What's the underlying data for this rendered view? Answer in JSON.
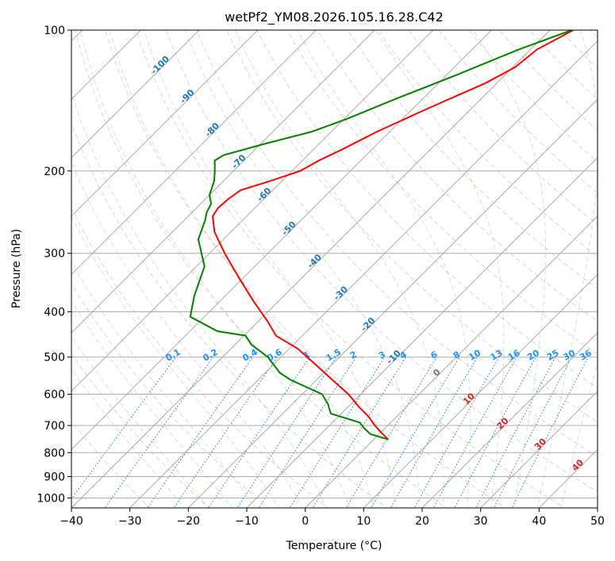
{
  "chart_data": {
    "type": "skew-t",
    "title": "wetPf2_YM08.2026.105.16.28.C42",
    "xlabel": "Temperature (°C)",
    "ylabel": "Pressure (hPa)",
    "xlim": [
      -40,
      50
    ],
    "ylim": [
      1050,
      100
    ],
    "x_ticks": [
      "−40",
      "−30",
      "−20",
      "−10",
      "0",
      "10",
      "20",
      "30",
      "40",
      "50"
    ],
    "x_tick_values": [
      -40,
      -30,
      -20,
      -10,
      0,
      10,
      20,
      30,
      40,
      50
    ],
    "y_tick_values": [
      1000,
      900,
      800,
      700,
      600,
      500,
      400,
      300,
      200,
      100
    ],
    "y_ticks": [
      "1000",
      "900",
      "800",
      "700",
      "600",
      "500",
      "400",
      "300",
      "200",
      "100"
    ],
    "grid": true,
    "isotherm_labels": [
      {
        "text": "-100",
        "t": -100,
        "p": 120
      },
      {
        "text": "-90",
        "t": -90,
        "p": 140
      },
      {
        "text": "-80",
        "t": -80,
        "p": 165
      },
      {
        "text": "-70",
        "t": -70,
        "p": 193
      },
      {
        "text": "-60",
        "t": -60,
        "p": 227
      },
      {
        "text": "-50",
        "t": -50,
        "p": 268
      },
      {
        "text": "-40",
        "t": -40,
        "p": 315
      },
      {
        "text": "-30",
        "t": -30,
        "p": 369
      },
      {
        "text": "-20",
        "t": -20,
        "p": 430
      },
      {
        "text": "-10",
        "t": -10,
        "p": 505
      }
    ],
    "mixing_ratio_labels": [
      "0.1",
      "0.2",
      "0.4",
      "0.6",
      "1",
      "1.5",
      "2",
      "3",
      "4",
      "6",
      "8",
      "10",
      "13",
      "16",
      "20",
      "25",
      "30",
      "36"
    ],
    "mixing_ratio_values": [
      0.1,
      0.2,
      0.4,
      0.6,
      1,
      1.5,
      2,
      3,
      4,
      6,
      8,
      10,
      13,
      16,
      20,
      25,
      30,
      36
    ],
    "moist_adiabat_labels": [
      {
        "text": "0",
        "t": 0,
        "p": 545
      },
      {
        "text": "10",
        "t": 10,
        "p": 620
      },
      {
        "text": "20",
        "t": 20,
        "p": 700
      },
      {
        "text": "30",
        "t": 30,
        "p": 775
      },
      {
        "text": "40",
        "t": 40,
        "p": 860
      }
    ],
    "series": [
      {
        "name": "temperature",
        "color": "#ff0000",
        "points": [
          [
            100,
            -36
          ],
          [
            110,
            -38.9
          ],
          [
            120,
            -39.6
          ],
          [
            130,
            -42.0
          ],
          [
            140,
            -45.3
          ],
          [
            150,
            -48.3
          ],
          [
            165,
            -52.2
          ],
          [
            180,
            -55.1
          ],
          [
            190,
            -57.2
          ],
          [
            200,
            -58.6
          ],
          [
            210,
            -62.0
          ],
          [
            220,
            -65.5
          ],
          [
            230,
            -66.1
          ],
          [
            240,
            -66.3
          ],
          [
            250,
            -65.8
          ],
          [
            270,
            -62.8
          ],
          [
            300,
            -57.4
          ],
          [
            340,
            -50.5
          ],
          [
            380,
            -44.2
          ],
          [
            420,
            -38.3
          ],
          [
            450,
            -34.5
          ],
          [
            480,
            -28.5
          ],
          [
            520,
            -22.6
          ],
          [
            560,
            -17.2
          ],
          [
            600,
            -12.1
          ],
          [
            640,
            -8.0
          ],
          [
            670,
            -4.8
          ],
          [
            700,
            -2.2
          ],
          [
            730,
            0.6
          ],
          [
            750,
            2.5
          ]
        ]
      },
      {
        "name": "dewpoint",
        "color": "#008000",
        "points": [
          [
            100,
            -36.3
          ],
          [
            110,
            -42
          ],
          [
            125,
            -48.4
          ],
          [
            140,
            -54.5
          ],
          [
            155,
            -59.6
          ],
          [
            165,
            -63.4
          ],
          [
            175,
            -69.3
          ],
          [
            185,
            -74.4
          ],
          [
            190,
            -75.0
          ],
          [
            200,
            -73.2
          ],
          [
            210,
            -71.6
          ],
          [
            225,
            -70.0
          ],
          [
            235,
            -68.2
          ],
          [
            245,
            -67.5
          ],
          [
            255,
            -66.4
          ],
          [
            280,
            -64.3
          ],
          [
            320,
            -58.6
          ],
          [
            370,
            -55.3
          ],
          [
            410,
            -52.4
          ],
          [
            440,
            -45.3
          ],
          [
            450,
            -39.7
          ],
          [
            470,
            -37.2
          ],
          [
            500,
            -32.2
          ],
          [
            540,
            -27.5
          ],
          [
            560,
            -24.3
          ],
          [
            600,
            -16.6
          ],
          [
            630,
            -13.9
          ],
          [
            660,
            -11.8
          ],
          [
            690,
            -5.3
          ],
          [
            710,
            -3.5
          ],
          [
            730,
            -1.5
          ],
          [
            750,
            2.5
          ]
        ]
      }
    ]
  }
}
